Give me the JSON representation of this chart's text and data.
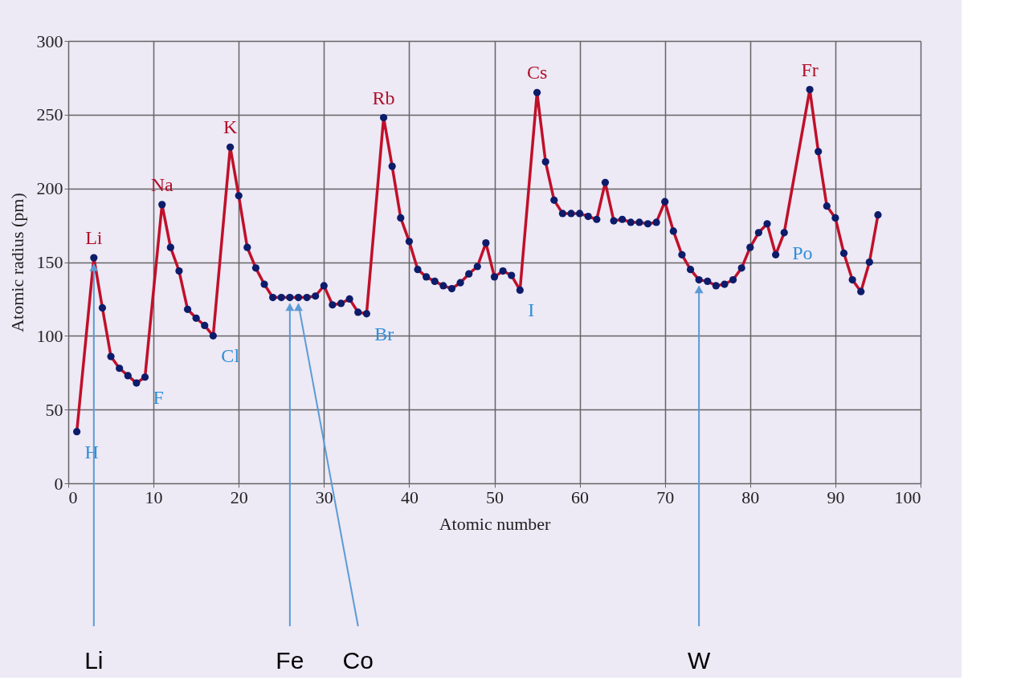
{
  "chart_data": {
    "type": "line",
    "xlabel": "Atomic number",
    "ylabel": "Atomic radius (pm)",
    "xlim": [
      0,
      100
    ],
    "xticks": [
      0,
      10,
      20,
      30,
      40,
      50,
      60,
      70,
      80,
      90,
      100
    ],
    "ylim": [
      0,
      300
    ],
    "yticks": [
      0,
      50,
      100,
      150,
      200,
      250,
      300
    ],
    "grid": true,
    "marker": "circle",
    "line_style": "solid",
    "x": [
      1,
      3,
      4,
      5,
      6,
      7,
      8,
      9,
      11,
      12,
      13,
      14,
      15,
      16,
      17,
      19,
      20,
      21,
      22,
      23,
      24,
      25,
      26,
      27,
      28,
      29,
      30,
      31,
      32,
      33,
      34,
      35,
      37,
      38,
      39,
      40,
      41,
      42,
      43,
      44,
      45,
      46,
      47,
      48,
      49,
      50,
      51,
      52,
      53,
      55,
      56,
      57,
      58,
      59,
      60,
      61,
      62,
      63,
      64,
      65,
      66,
      67,
      68,
      69,
      70,
      71,
      72,
      73,
      74,
      75,
      76,
      77,
      78,
      79,
      80,
      81,
      82,
      83,
      84,
      87,
      88,
      89,
      90,
      91,
      92,
      93,
      94,
      95
    ],
    "series": [
      {
        "color": "#c0102a",
        "values": [
          35,
          153,
          119,
          86,
          78,
          73,
          68,
          72,
          189,
          160,
          144,
          118,
          112,
          107,
          100,
          228,
          195,
          160,
          146,
          135,
          126,
          126,
          126,
          126,
          126,
          127,
          134,
          121,
          122,
          125,
          116,
          115,
          248,
          215,
          180,
          164,
          145,
          140,
          137,
          134,
          132,
          136,
          142,
          147,
          163,
          140,
          144,
          141,
          131,
          265,
          218,
          192,
          183,
          183,
          183,
          181,
          179,
          204,
          178,
          179,
          177,
          177,
          176,
          177,
          191,
          171,
          155,
          145,
          138,
          137,
          134,
          135,
          138,
          146,
          160,
          170,
          176,
          155,
          170,
          267,
          225,
          188,
          180,
          156,
          138,
          130,
          150,
          182
        ],
        "value_labels": [
          "H",
          "Li",
          null,
          null,
          null,
          null,
          null,
          "F",
          "Na",
          null,
          null,
          null,
          null,
          null,
          "Cl",
          "K",
          null,
          null,
          null,
          null,
          null,
          null,
          null,
          null,
          null,
          null,
          null,
          null,
          null,
          null,
          null,
          "Br",
          "Rb",
          null,
          null,
          null,
          null,
          null,
          null,
          null,
          null,
          null,
          null,
          null,
          null,
          null,
          null,
          null,
          "I",
          "Cs",
          null,
          null,
          null,
          null,
          null,
          null,
          null,
          null,
          null,
          null,
          null,
          null,
          null,
          null,
          null,
          null,
          null,
          null,
          null,
          null,
          null,
          null,
          null,
          null,
          null,
          null,
          null,
          null,
          "Po",
          "Fr",
          null,
          null,
          null,
          null,
          null,
          null,
          null,
          null
        ]
      }
    ],
    "annotations": [
      {
        "text": "Li",
        "x": 3,
        "y": 153
      },
      {
        "text": "Fe",
        "x": 26,
        "y": 126
      },
      {
        "text": "Co",
        "x": 27,
        "y": 126
      },
      {
        "text": "W",
        "x": 74,
        "y": 138
      }
    ]
  }
}
